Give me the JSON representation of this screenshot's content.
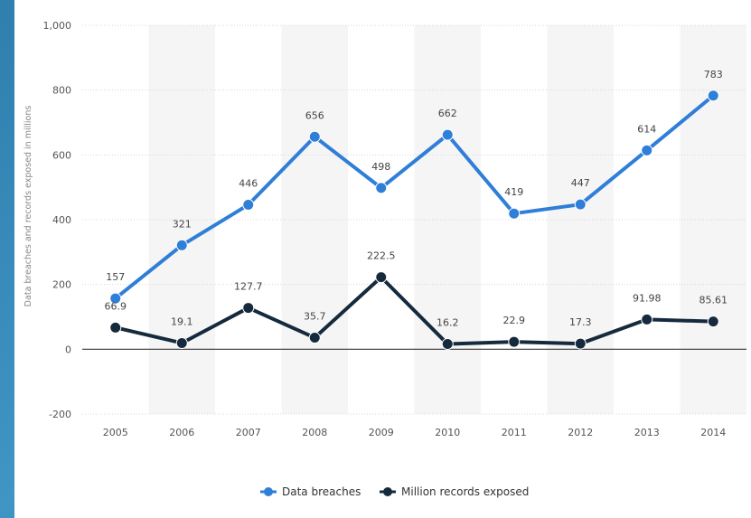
{
  "chart_data": {
    "type": "line",
    "categories": [
      "2005",
      "2006",
      "2007",
      "2008",
      "2009",
      "2010",
      "2011",
      "2012",
      "2013",
      "2014"
    ],
    "series": [
      {
        "name": "Data breaches",
        "color": "#2f7ed8",
        "values": [
          157,
          321,
          446,
          656,
          498,
          662,
          419,
          447,
          614,
          783
        ],
        "labels": [
          "157",
          "321",
          "446",
          "656",
          "498",
          "662",
          "419",
          "447",
          "614",
          "783"
        ]
      },
      {
        "name": "Million records exposed",
        "color": "#152a3c",
        "values": [
          66.9,
          19.1,
          127.7,
          35.7,
          222.5,
          16.2,
          22.9,
          17.3,
          91.98,
          85.61
        ],
        "labels": [
          "66.9",
          "19.1",
          "127.7",
          "35.7",
          "222.5",
          "16.2",
          "22.9",
          "17.3",
          "91.98",
          "85.61"
        ]
      }
    ],
    "ylabel": "Data breaches and records exposed in millions",
    "ylim": [
      -200,
      1000
    ],
    "yticks": [
      "-200",
      "0",
      "200",
      "400",
      "600",
      "800",
      "1,000"
    ],
    "ytick_values": [
      -200,
      0,
      200,
      400,
      600,
      800,
      1000
    ],
    "grid": true,
    "legend_position": "bottom-center"
  }
}
